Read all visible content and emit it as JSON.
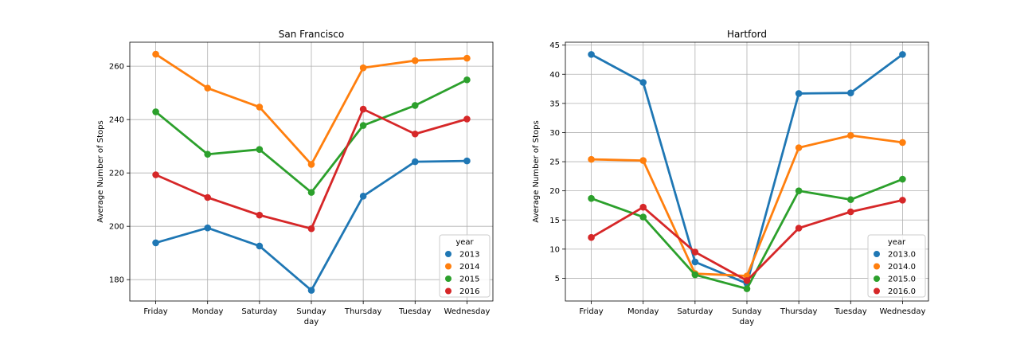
{
  "chart_data": [
    {
      "type": "line",
      "title": "San Francisco",
      "xlabel": "day",
      "ylabel": "Average Number of Stops",
      "categories": [
        "Friday",
        "Monday",
        "Saturday",
        "Sunday",
        "Thursday",
        "Tuesday",
        "Wednesday"
      ],
      "ylim": [
        172,
        269
      ],
      "yticks": [
        180,
        200,
        220,
        240,
        260
      ],
      "ytick_labels": [
        "180",
        "200",
        "220",
        "240",
        "260"
      ],
      "grid": true,
      "legend": {
        "title": "year",
        "placement": "lower-right"
      },
      "series": [
        {
          "name": "2013",
          "color": "#1f77b4",
          "values": [
            193.8,
            199.4,
            192.6,
            176.0,
            211.3,
            224.2,
            224.5
          ]
        },
        {
          "name": "2014",
          "color": "#ff7f0e",
          "values": [
            264.5,
            251.8,
            244.7,
            223.2,
            259.4,
            262.1,
            263.0
          ]
        },
        {
          "name": "2015",
          "color": "#2ca02c",
          "values": [
            242.9,
            227.0,
            228.8,
            212.7,
            237.8,
            245.3,
            254.9
          ]
        },
        {
          "name": "2016",
          "color": "#d62728",
          "values": [
            219.3,
            210.8,
            204.2,
            199.1,
            243.9,
            234.6,
            240.2
          ]
        }
      ]
    },
    {
      "type": "line",
      "title": "Hartford",
      "xlabel": "day",
      "ylabel": "Average Number of Stops",
      "categories": [
        "Friday",
        "Monday",
        "Saturday",
        "Sunday",
        "Thursday",
        "Tuesday",
        "Wednesday"
      ],
      "ylim": [
        1.1,
        45.5
      ],
      "yticks": [
        5,
        10,
        15,
        20,
        25,
        30,
        35,
        40,
        45
      ],
      "ytick_labels": [
        "5",
        "10",
        "15",
        "20",
        "25",
        "30",
        "35",
        "40",
        "45"
      ],
      "grid": true,
      "legend": {
        "title": "year",
        "placement": "lower-right"
      },
      "series": [
        {
          "name": "2013.0",
          "color": "#1f77b4",
          "values": [
            43.4,
            38.6,
            7.8,
            4.1,
            36.7,
            36.8,
            43.4
          ]
        },
        {
          "name": "2014.0",
          "color": "#ff7f0e",
          "values": [
            25.4,
            25.2,
            5.8,
            5.4,
            27.4,
            29.5,
            28.3
          ]
        },
        {
          "name": "2015.0",
          "color": "#2ca02c",
          "values": [
            18.7,
            15.5,
            5.6,
            3.2,
            20.0,
            18.5,
            22.0
          ]
        },
        {
          "name": "2016.0",
          "color": "#d62728",
          "values": [
            12.0,
            17.2,
            9.5,
            4.6,
            13.6,
            16.4,
            18.4
          ]
        }
      ]
    }
  ]
}
